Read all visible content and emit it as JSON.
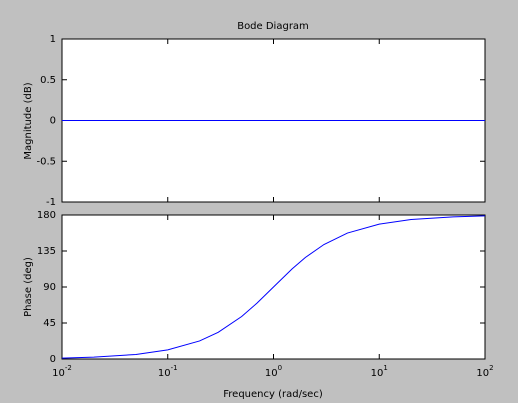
{
  "chart_data": [
    {
      "type": "line",
      "title": "Bode Diagram",
      "ylabel": "Magnitude (dB)",
      "xscale": "log",
      "xlim": [
        0.01,
        100
      ],
      "ylim": [
        -1,
        1
      ],
      "yticks": [
        -1,
        -0.5,
        0,
        0.5,
        1
      ],
      "x": [
        0.01,
        100
      ],
      "series": [
        {
          "color": "#0000ff",
          "values": [
            0,
            0
          ]
        }
      ]
    },
    {
      "type": "line",
      "xlabel": "Frequency  (rad/sec)",
      "ylabel": "Phase (deg)",
      "xscale": "log",
      "xlim": [
        0.01,
        100
      ],
      "xticks": [
        {
          "value": 0.01,
          "label": "10^-2"
        },
        {
          "value": 0.1,
          "label": "10^-1"
        },
        {
          "value": 1,
          "label": "10^0"
        },
        {
          "value": 10,
          "label": "10^1"
        },
        {
          "value": 100,
          "label": "10^2"
        }
      ],
      "ylim": [
        0,
        180
      ],
      "yticks": [
        0,
        45,
        90,
        135,
        180
      ],
      "x": [
        0.01,
        0.02,
        0.05,
        0.1,
        0.2,
        0.3,
        0.5,
        0.7,
        1,
        1.5,
        2,
        3,
        5,
        10,
        20,
        50,
        100
      ],
      "series": [
        {
          "color": "#0000ff",
          "values": [
            1.1,
            2.3,
            5.7,
            11.4,
            22.6,
            33.4,
            53.1,
            70.0,
            90.0,
            112.6,
            126.9,
            143.1,
            157.4,
            168.6,
            174.3,
            177.7,
            178.9
          ]
        }
      ]
    }
  ]
}
